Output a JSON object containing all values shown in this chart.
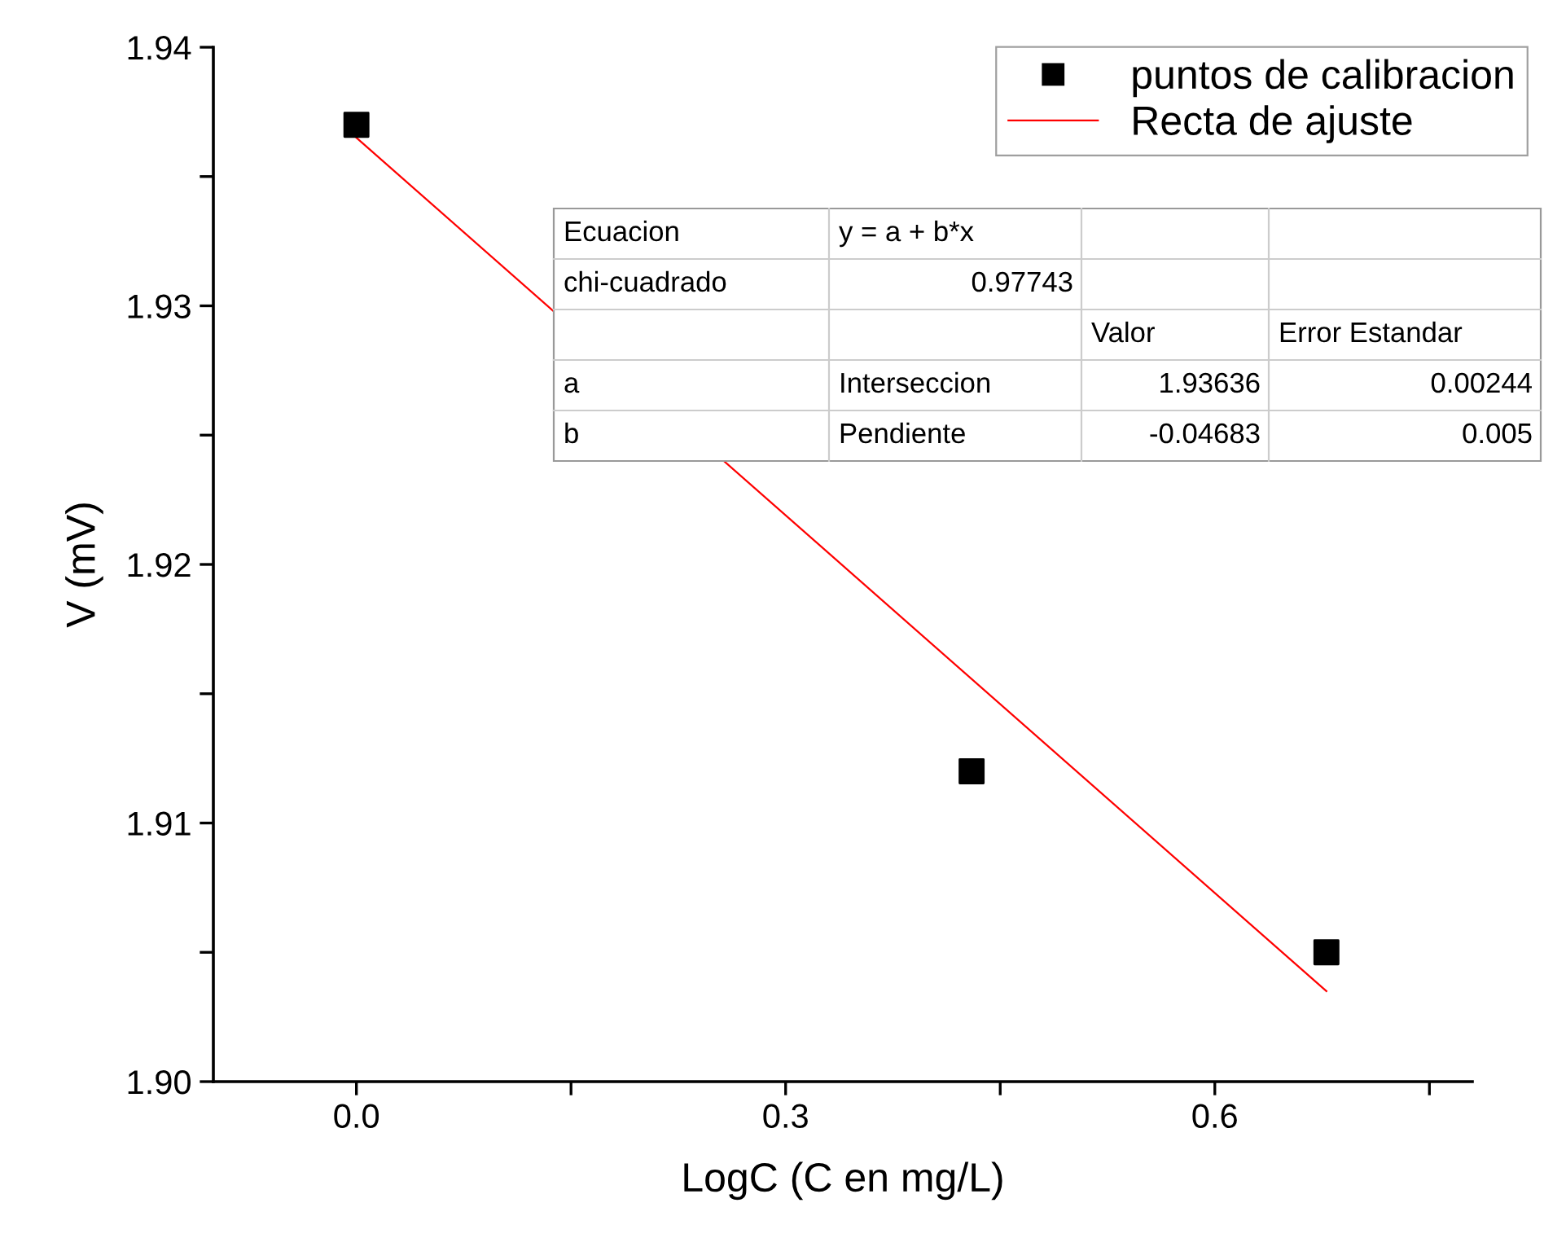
{
  "chart_data": {
    "type": "scatter",
    "xlabel": "LogC (C en mg/L)",
    "ylabel": "V (mV)",
    "xlim": [
      -0.1,
      0.78
    ],
    "ylim": [
      1.9,
      1.94
    ],
    "xticks": [
      {
        "value": 0,
        "label": "0.0"
      },
      {
        "value": 0.15,
        "label": null
      },
      {
        "value": 0.3,
        "label": "0.3"
      },
      {
        "value": 0.45,
        "label": null
      },
      {
        "value": 0.6,
        "label": "0.6"
      },
      {
        "value": 0.75,
        "label": null
      }
    ],
    "yticks": [
      {
        "value": 1.9,
        "label": "1.90"
      },
      {
        "value": 1.905,
        "label": null
      },
      {
        "value": 1.91,
        "label": "1.91"
      },
      {
        "value": 1.915,
        "label": null
      },
      {
        "value": 1.92,
        "label": "1.92"
      },
      {
        "value": 1.925,
        "label": null
      },
      {
        "value": 1.93,
        "label": "1.93"
      },
      {
        "value": 1.935,
        "label": null
      },
      {
        "value": 1.94,
        "label": "1.94"
      }
    ],
    "legend": "top right",
    "series": [
      {
        "name": "puntos de calibracion",
        "marker": "square",
        "color": "#000000",
        "x": [
          0,
          0.43,
          0.678
        ],
        "values": [
          1.937,
          1.912,
          1.905
        ]
      },
      {
        "name": "Recta de ajuste",
        "type": "line",
        "line_style": "solid",
        "color": "#ff0000",
        "x": [
          0,
          0.678
        ],
        "values": [
          1.9365,
          1.9035
        ]
      }
    ],
    "annotations": [
      "Ecuacion",
      "y = a + b*x",
      "chi-cuadrado",
      "0.97743",
      "Valor",
      "Error Estandar",
      "a",
      "Interseccion",
      "1.93636",
      "0.00244",
      "b",
      "Pendiente",
      "-0.04683",
      "0.005"
    ]
  }
}
